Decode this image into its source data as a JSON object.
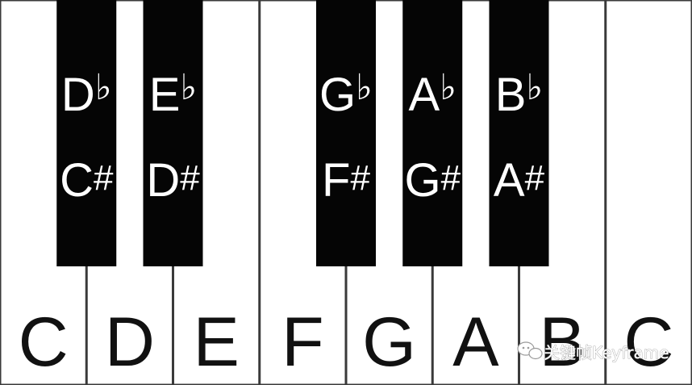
{
  "colors": {
    "white_key": "#ffffff",
    "black_key": "#050505",
    "key_border": "#3a3a3a",
    "white_label": "#111111",
    "black_label": "#ffffff"
  },
  "white_keys": [
    {
      "label": "C"
    },
    {
      "label": "D"
    },
    {
      "label": "E"
    },
    {
      "label": "F"
    },
    {
      "label": "G"
    },
    {
      "label": "A"
    },
    {
      "label": "B"
    },
    {
      "label": "C"
    }
  ],
  "black_keys": [
    {
      "flat": {
        "letter": "D",
        "sign": "♭"
      },
      "sharp": {
        "letter": "C",
        "sign": "#"
      }
    },
    {
      "flat": {
        "letter": "E",
        "sign": "♭"
      },
      "sharp": {
        "letter": "D",
        "sign": "#"
      }
    },
    {
      "flat": {
        "letter": "G",
        "sign": "♭"
      },
      "sharp": {
        "letter": "F",
        "sign": "#"
      }
    },
    {
      "flat": {
        "letter": "A",
        "sign": "♭"
      },
      "sharp": {
        "letter": "G",
        "sign": "#"
      }
    },
    {
      "flat": {
        "letter": "B",
        "sign": "♭"
      },
      "sharp": {
        "letter": "A",
        "sign": "#"
      }
    }
  ],
  "watermark": {
    "text": "关键帧Keyframe",
    "icon": "chat-bubble-icon"
  }
}
